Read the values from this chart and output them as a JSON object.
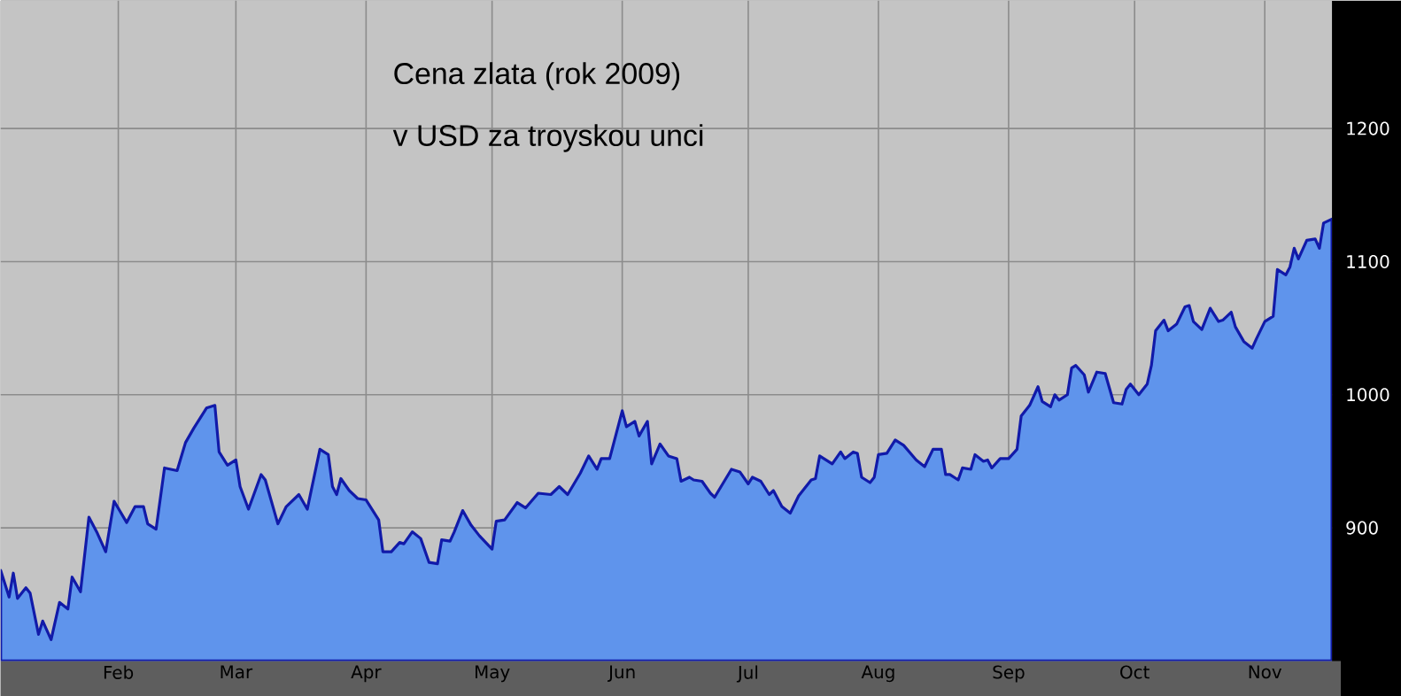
{
  "chart_data": {
    "type": "area",
    "title": "Cena zlata (rok 2009)",
    "subtitle": "v USD za troyskou unci",
    "x": [
      "2009-01-04",
      "2009-01-06",
      "2009-01-07",
      "2009-01-08",
      "2009-01-10",
      "2009-01-11",
      "2009-01-13",
      "2009-01-14",
      "2009-01-16",
      "2009-01-18",
      "2009-01-20",
      "2009-01-21",
      "2009-01-23",
      "2009-01-25",
      "2009-01-27",
      "2009-01-29",
      "2009-01-31",
      "2009-02-03",
      "2009-02-05",
      "2009-02-07",
      "2009-02-08",
      "2009-02-10",
      "2009-02-12",
      "2009-02-15",
      "2009-02-17",
      "2009-02-19",
      "2009-02-22",
      "2009-02-24",
      "2009-02-25",
      "2009-02-27",
      "2009-03-01",
      "2009-03-02",
      "2009-03-04",
      "2009-03-07",
      "2009-03-08",
      "2009-03-11",
      "2009-03-13",
      "2009-03-16",
      "2009-03-18",
      "2009-03-21",
      "2009-03-23",
      "2009-03-24",
      "2009-03-25",
      "2009-03-26",
      "2009-03-28",
      "2009-03-30",
      "2009-04-01",
      "2009-04-04",
      "2009-04-05",
      "2009-04-07",
      "2009-04-09",
      "2009-04-10",
      "2009-04-12",
      "2009-04-14",
      "2009-04-16",
      "2009-04-18",
      "2009-04-19",
      "2009-04-21",
      "2009-04-22",
      "2009-04-24",
      "2009-04-26",
      "2009-04-28",
      "2009-05-01",
      "2009-05-02",
      "2009-05-04",
      "2009-05-07",
      "2009-05-09",
      "2009-05-12",
      "2009-05-15",
      "2009-05-17",
      "2009-05-19",
      "2009-05-22",
      "2009-05-24",
      "2009-05-26",
      "2009-05-27",
      "2009-05-29",
      "2009-06-01",
      "2009-06-02",
      "2009-06-04",
      "2009-06-05",
      "2009-06-07",
      "2009-06-08",
      "2009-06-10",
      "2009-06-12",
      "2009-06-14",
      "2009-06-15",
      "2009-06-17",
      "2009-06-18",
      "2009-06-20",
      "2009-06-22",
      "2009-06-23",
      "2009-06-27",
      "2009-06-29",
      "2009-07-01",
      "2009-07-02",
      "2009-07-04",
      "2009-07-06",
      "2009-07-07",
      "2009-07-09",
      "2009-07-11",
      "2009-07-13",
      "2009-07-16",
      "2009-07-17",
      "2009-07-18",
      "2009-07-21",
      "2009-07-23",
      "2009-07-24",
      "2009-07-26",
      "2009-07-27",
      "2009-07-28",
      "2009-07-30",
      "2009-07-31",
      "2009-08-01",
      "2009-08-03",
      "2009-08-05",
      "2009-08-07",
      "2009-08-10",
      "2009-08-12",
      "2009-08-14",
      "2009-08-16",
      "2009-08-17",
      "2009-08-18",
      "2009-08-20",
      "2009-08-21",
      "2009-08-23",
      "2009-08-24",
      "2009-08-26",
      "2009-08-27",
      "2009-08-28",
      "2009-08-30",
      "2009-09-01",
      "2009-09-03",
      "2009-09-04",
      "2009-09-06",
      "2009-09-08",
      "2009-09-09",
      "2009-09-11",
      "2009-09-12",
      "2009-09-13",
      "2009-09-15",
      "2009-09-16",
      "2009-09-17",
      "2009-09-19",
      "2009-09-20",
      "2009-09-22",
      "2009-09-24",
      "2009-09-26",
      "2009-09-28",
      "2009-09-29",
      "2009-09-30",
      "2009-10-02",
      "2009-10-04",
      "2009-10-05",
      "2009-10-06",
      "2009-10-08",
      "2009-10-09",
      "2009-10-11",
      "2009-10-13",
      "2009-10-14",
      "2009-10-15",
      "2009-10-17",
      "2009-10-19",
      "2009-10-21",
      "2009-10-22",
      "2009-10-24",
      "2009-10-25",
      "2009-10-27",
      "2009-10-29",
      "2009-10-30",
      "2009-11-01",
      "2009-11-03",
      "2009-11-04",
      "2009-11-06",
      "2009-11-07",
      "2009-11-08",
      "2009-11-09",
      "2009-11-11",
      "2009-11-13",
      "2009-11-14",
      "2009-11-15",
      "2009-11-17"
    ],
    "series": [
      {
        "color": "#5f94ec",
        "values": [
          868,
          848,
          866,
          847,
          855,
          851,
          820,
          830,
          816,
          844,
          839,
          863,
          852,
          908,
          896,
          882,
          920,
          904,
          916,
          916,
          903,
          899,
          945,
          943,
          964,
          975,
          990,
          992,
          957,
          947,
          951,
          931,
          914,
          940,
          936,
          903,
          916,
          925,
          914,
          959,
          955,
          931,
          925,
          937,
          928,
          922,
          921,
          906,
          882,
          882,
          889,
          888,
          897,
          892,
          874,
          873,
          891,
          890,
          897,
          913,
          902,
          894,
          884,
          905,
          906,
          919,
          915,
          926,
          925,
          931,
          925,
          941,
          954,
          944,
          952,
          952,
          988,
          976,
          980,
          969,
          980,
          948,
          963,
          954,
          952,
          935,
          938,
          936,
          935,
          926,
          923,
          944,
          942,
          933,
          938,
          935,
          925,
          928,
          916,
          911,
          924,
          936,
          937,
          954,
          948,
          957,
          952,
          957,
          956,
          938,
          934,
          938,
          955,
          956,
          966,
          962,
          951,
          946,
          959,
          959,
          940,
          940,
          936,
          945,
          944,
          955,
          950,
          951,
          945,
          952,
          952,
          959,
          984,
          992,
          1006,
          995,
          991,
          1000,
          996,
          1000,
          1020,
          1022,
          1015,
          1002,
          1017,
          1016,
          994,
          993,
          1004,
          1008,
          1000,
          1008,
          1022,
          1048,
          1056,
          1048,
          1053,
          1066,
          1067,
          1055,
          1049,
          1065,
          1055,
          1056,
          1062,
          1051,
          1040,
          1035,
          1042,
          1055,
          1059,
          1094,
          1090,
          1096,
          1110,
          1102,
          1116,
          1117,
          1110,
          1129,
          1132
        ]
      }
    ],
    "xlim": [
      "2009-01-04",
      "2009-11-17"
    ],
    "ylim": [
      800,
      1296
    ],
    "xticks": [
      {
        "value": "2009-02-01",
        "label": "Feb"
      },
      {
        "value": "2009-03-01",
        "label": "Mar"
      },
      {
        "value": "2009-04-01",
        "label": "Apr"
      },
      {
        "value": "2009-05-01",
        "label": "May"
      },
      {
        "value": "2009-06-01",
        "label": "Jun"
      },
      {
        "value": "2009-07-01",
        "label": "Jul"
      },
      {
        "value": "2009-08-01",
        "label": "Aug"
      },
      {
        "value": "2009-09-01",
        "label": "Sep"
      },
      {
        "value": "2009-10-01",
        "label": "Oct"
      },
      {
        "value": "2009-11-01",
        "label": "Nov"
      }
    ],
    "yticks": [
      900,
      1000,
      1100,
      1200
    ],
    "grid": true
  }
}
